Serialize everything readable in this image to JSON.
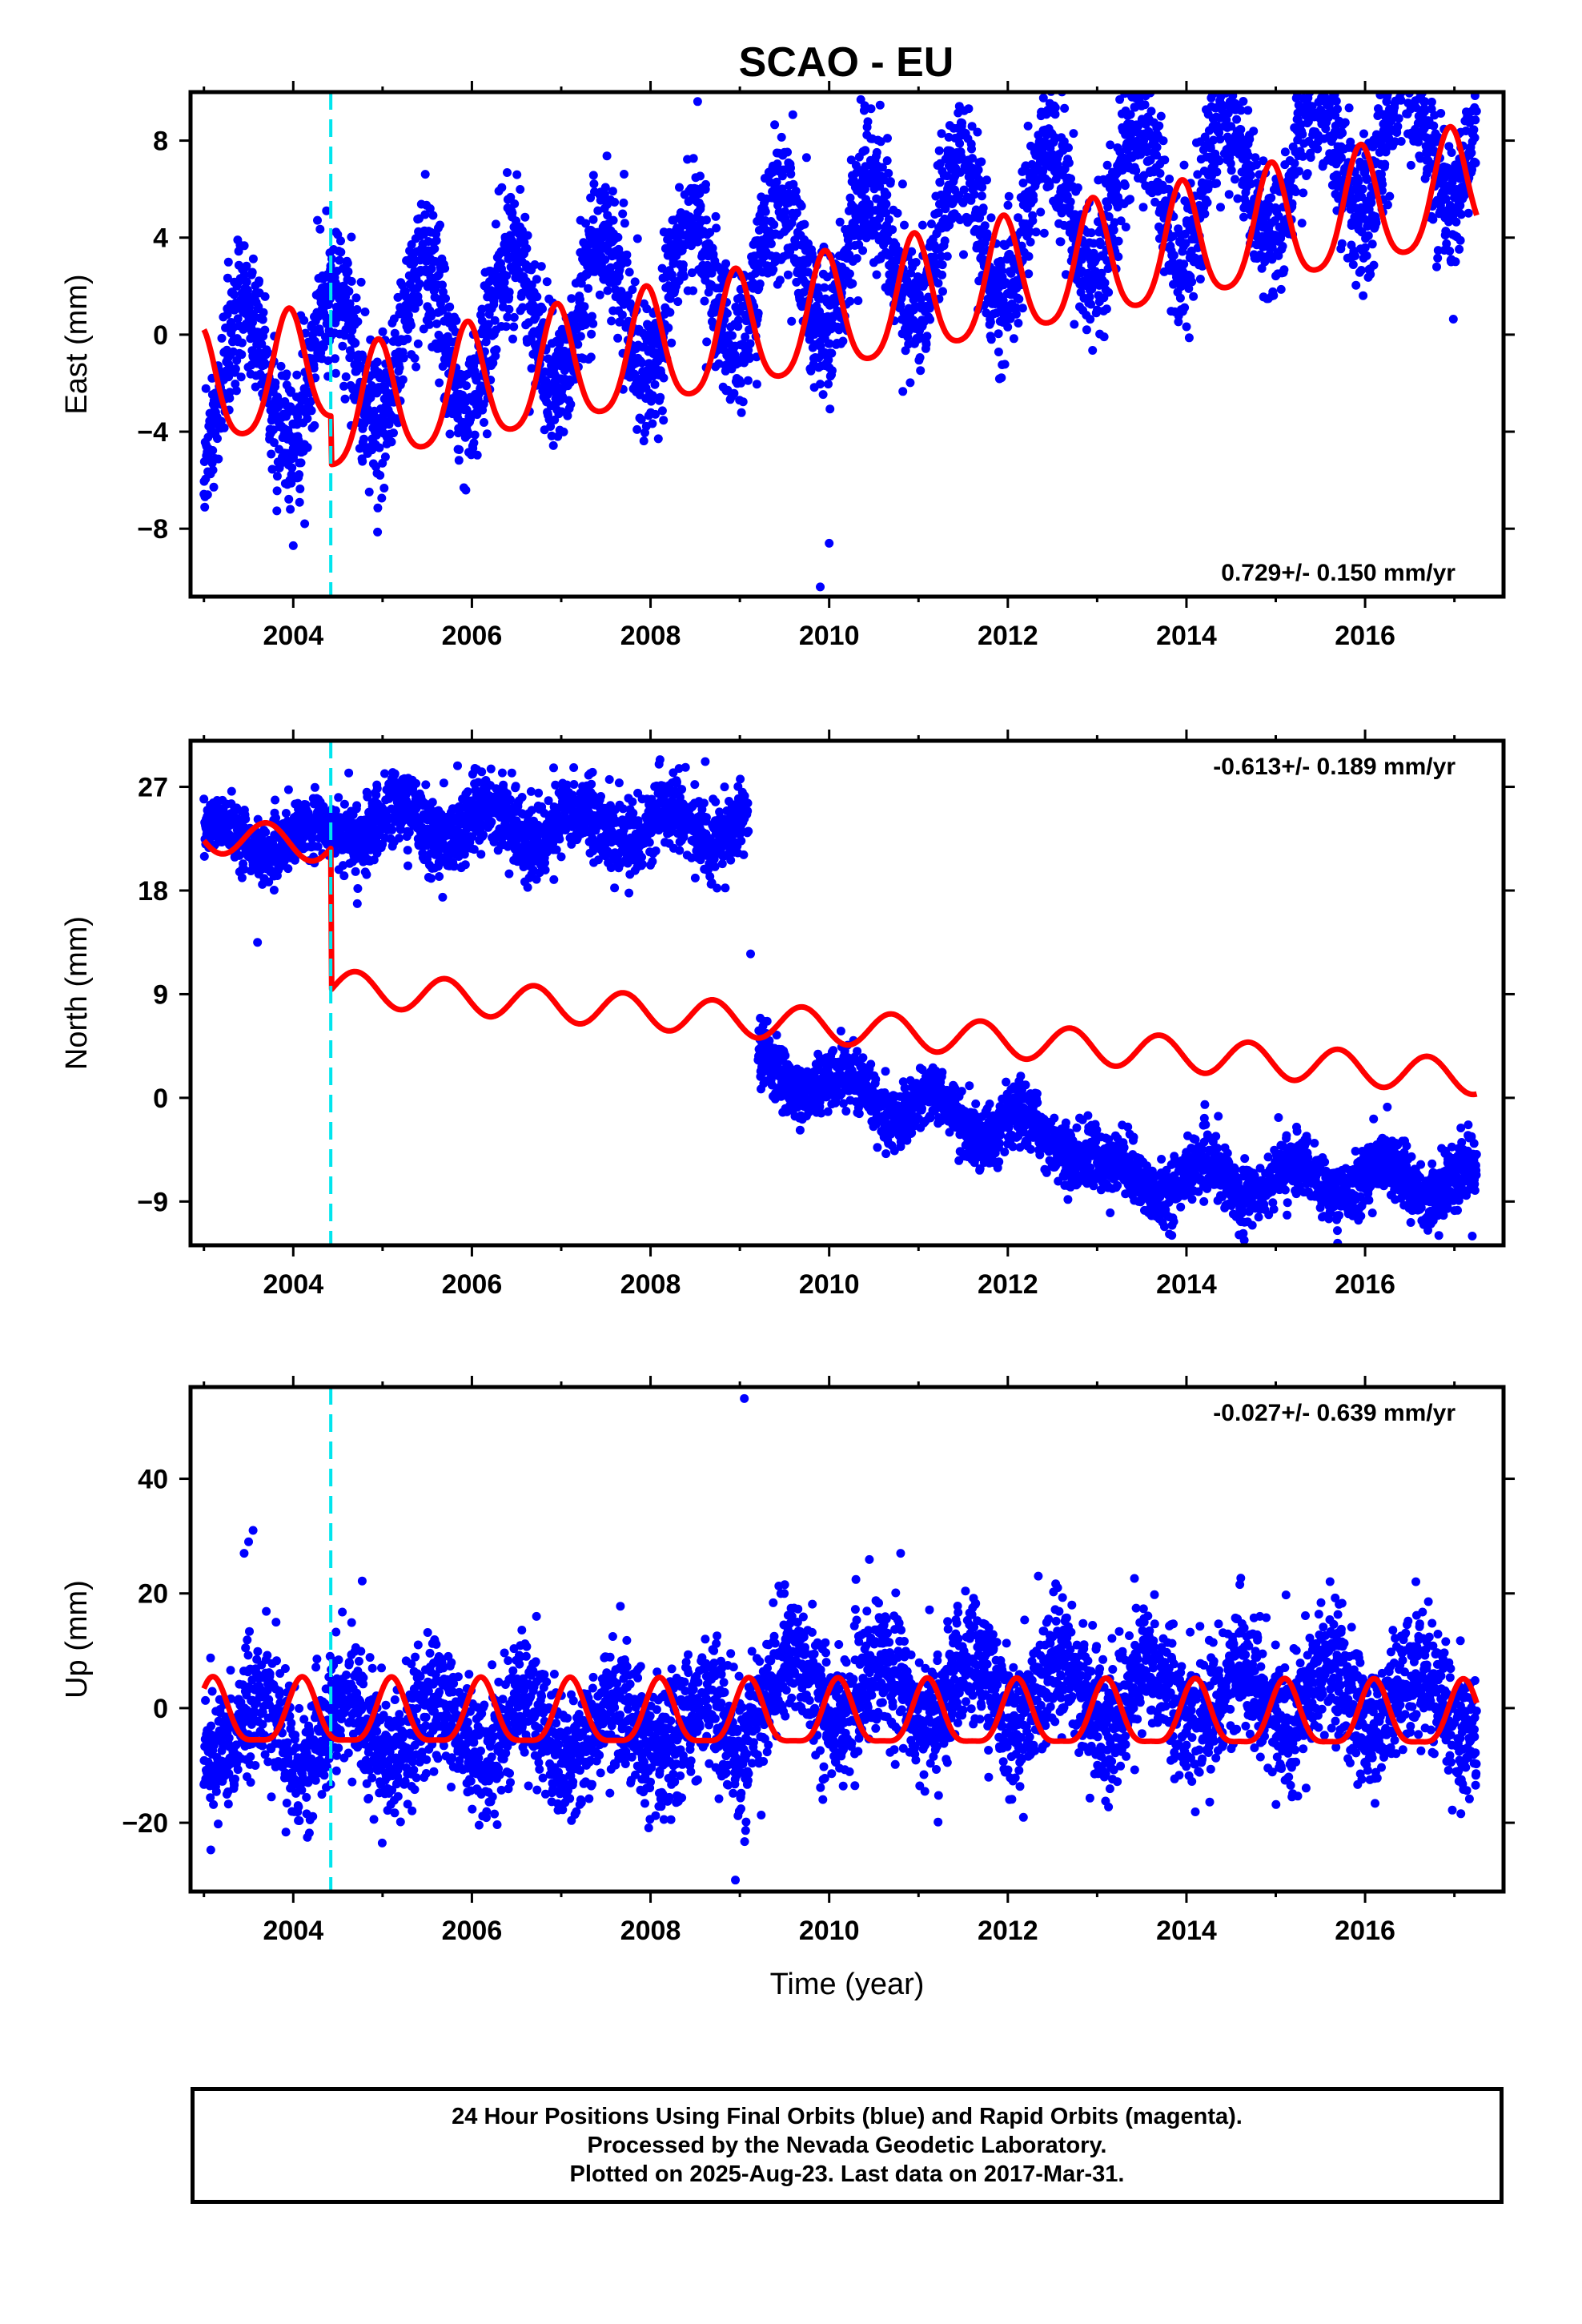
{
  "title": "SCAO - EU",
  "colors": {
    "final_orbits": "#0000ff",
    "model": "#ff0000",
    "equipment_change": "#00e5ee",
    "frame": "#000000"
  },
  "chart_data": [
    {
      "type": "scatter",
      "component": "east",
      "ylabel": "East (mm)",
      "xlabel": "",
      "xlim": [
        2002.85,
        2017.55
      ],
      "ylim": [
        -10.8,
        10
      ],
      "yticks": [
        -8,
        -4,
        0,
        4,
        8
      ],
      "yticks_labels": [
        "−8",
        "−4",
        "0",
        "4",
        "8"
      ],
      "xticks": [
        2004,
        2006,
        2008,
        2010,
        2012,
        2014,
        2016
      ],
      "xticks_labels": [
        "2004",
        "2006",
        "2008",
        "2010",
        "2012",
        "2014",
        "2016"
      ],
      "equipment_change": 2004.42,
      "rate_text": "0.729+/- 0.150 mm/yr",
      "rate_position": "bottom-right",
      "data_range": [
        2003.0,
        2017.25
      ],
      "model": {
        "rate": 0.729,
        "annual_amplitude": 2.4,
        "annual_phase_year": 2003.45,
        "semiannual_amplitude": 0.4,
        "offsets": [
          {
            "epoch": 2004.42,
            "size": -2.0
          }
        ],
        "value_at_start": -2.4
      },
      "scatter": {
        "sigma": 1.4,
        "annual_amplitude": 3.0,
        "annual_phase_year": 2003.45,
        "value_at_start": -2.2,
        "rate": 0.75
      },
      "outliers": [
        {
          "x": 2009.9,
          "y": -10.4
        },
        {
          "x": 2010.0,
          "y": -8.6
        },
        {
          "x": 2004.0,
          "y": -8.7
        }
      ]
    },
    {
      "type": "scatter",
      "component": "north",
      "ylabel": "North (mm)",
      "xlabel": "",
      "xlim": [
        2002.85,
        2017.55
      ],
      "ylim": [
        -12.8,
        31
      ],
      "yticks": [
        -9,
        0,
        9,
        18,
        27
      ],
      "yticks_labels": [
        "−9",
        "0",
        "9",
        "18",
        "27"
      ],
      "xticks": [
        2004,
        2006,
        2008,
        2010,
        2012,
        2014,
        2016
      ],
      "xticks_labels": [
        "2004",
        "2006",
        "2008",
        "2010",
        "2012",
        "2014",
        "2016"
      ],
      "equipment_change": 2004.42,
      "rate_text": "-0.613+/- 0.189 mm/yr",
      "rate_position": "top-right",
      "data_range": [
        2003.0,
        2017.25
      ],
      "model": {
        "rate": -0.613,
        "annual_amplitude": 1.5,
        "annual_phase_year": 2003.2,
        "offsets": [
          {
            "epoch": 2004.42,
            "size": -12.3
          }
        ],
        "value_at_start": 22.8
      },
      "segments": [
        {
          "from": 2003.0,
          "to": 2004.42,
          "level_start": 22.5,
          "level_end": 22.5,
          "sigma": 1.2
        },
        {
          "from": 2004.42,
          "to": 2009.1,
          "level_start": 23.8,
          "level_end": 23.6,
          "sigma": 1.6
        },
        {
          "from": 2009.2,
          "to": 2013.0,
          "level_start": 2.5,
          "level_end": -4.5,
          "sigma": 1.3
        },
        {
          "from": 2013.0,
          "to": 2017.25,
          "level_start": -7.0,
          "level_end": -7.2,
          "sigma": 1.3
        }
      ],
      "outliers": [
        {
          "x": 2009.12,
          "y": 12.5
        },
        {
          "x": 2003.6,
          "y": 13.5
        },
        {
          "x": 2017.2,
          "y": -12.0
        }
      ]
    },
    {
      "type": "scatter",
      "component": "up",
      "ylabel": "Up (mm)",
      "xlabel": "Time (year)",
      "xlim": [
        2002.85,
        2017.55
      ],
      "ylim": [
        -32,
        56
      ],
      "yticks": [
        -20,
        0,
        20,
        40
      ],
      "yticks_labels": [
        "−20",
        "0",
        "20",
        "40"
      ],
      "xticks": [
        2004,
        2006,
        2008,
        2010,
        2012,
        2014,
        2016
      ],
      "xticks_labels": [
        "2004",
        "2006",
        "2008",
        "2010",
        "2012",
        "2014",
        "2016"
      ],
      "equipment_change": 2004.42,
      "rate_text": "-0.027+/- 0.639 mm/yr",
      "rate_position": "top-right",
      "data_range": [
        2003.0,
        2017.25
      ],
      "model": {
        "rate": -0.027,
        "annual_amplitude": 5.5,
        "annual_phase_year": 2003.6,
        "semiannual_amplitude": 1.5,
        "offsets": [],
        "value_at_start": -1.5
      },
      "segments": [
        {
          "from": 2003.0,
          "to": 2009.1,
          "level_start": -4.0,
          "level_end": -4.0,
          "sigma": 5.5
        },
        {
          "from": 2009.1,
          "to": 2017.25,
          "level_start": 3.5,
          "level_end": 1.0,
          "sigma": 5.5
        }
      ],
      "outliers": [
        {
          "x": 2009.05,
          "y": 54
        },
        {
          "x": 2003.55,
          "y": 31
        },
        {
          "x": 2003.5,
          "y": 29
        },
        {
          "x": 2003.45,
          "y": 27
        },
        {
          "x": 2010.8,
          "y": 27
        },
        {
          "x": 2008.95,
          "y": -30
        }
      ]
    }
  ],
  "caption": {
    "line1": "24 Hour Positions Using Final Orbits (blue) and Rapid Orbits (magenta).",
    "line2": "Processed by the Nevada Geodetic Laboratory.",
    "line3": "Plotted on 2025-Aug-23. Last data on 2017-Mar-31."
  }
}
